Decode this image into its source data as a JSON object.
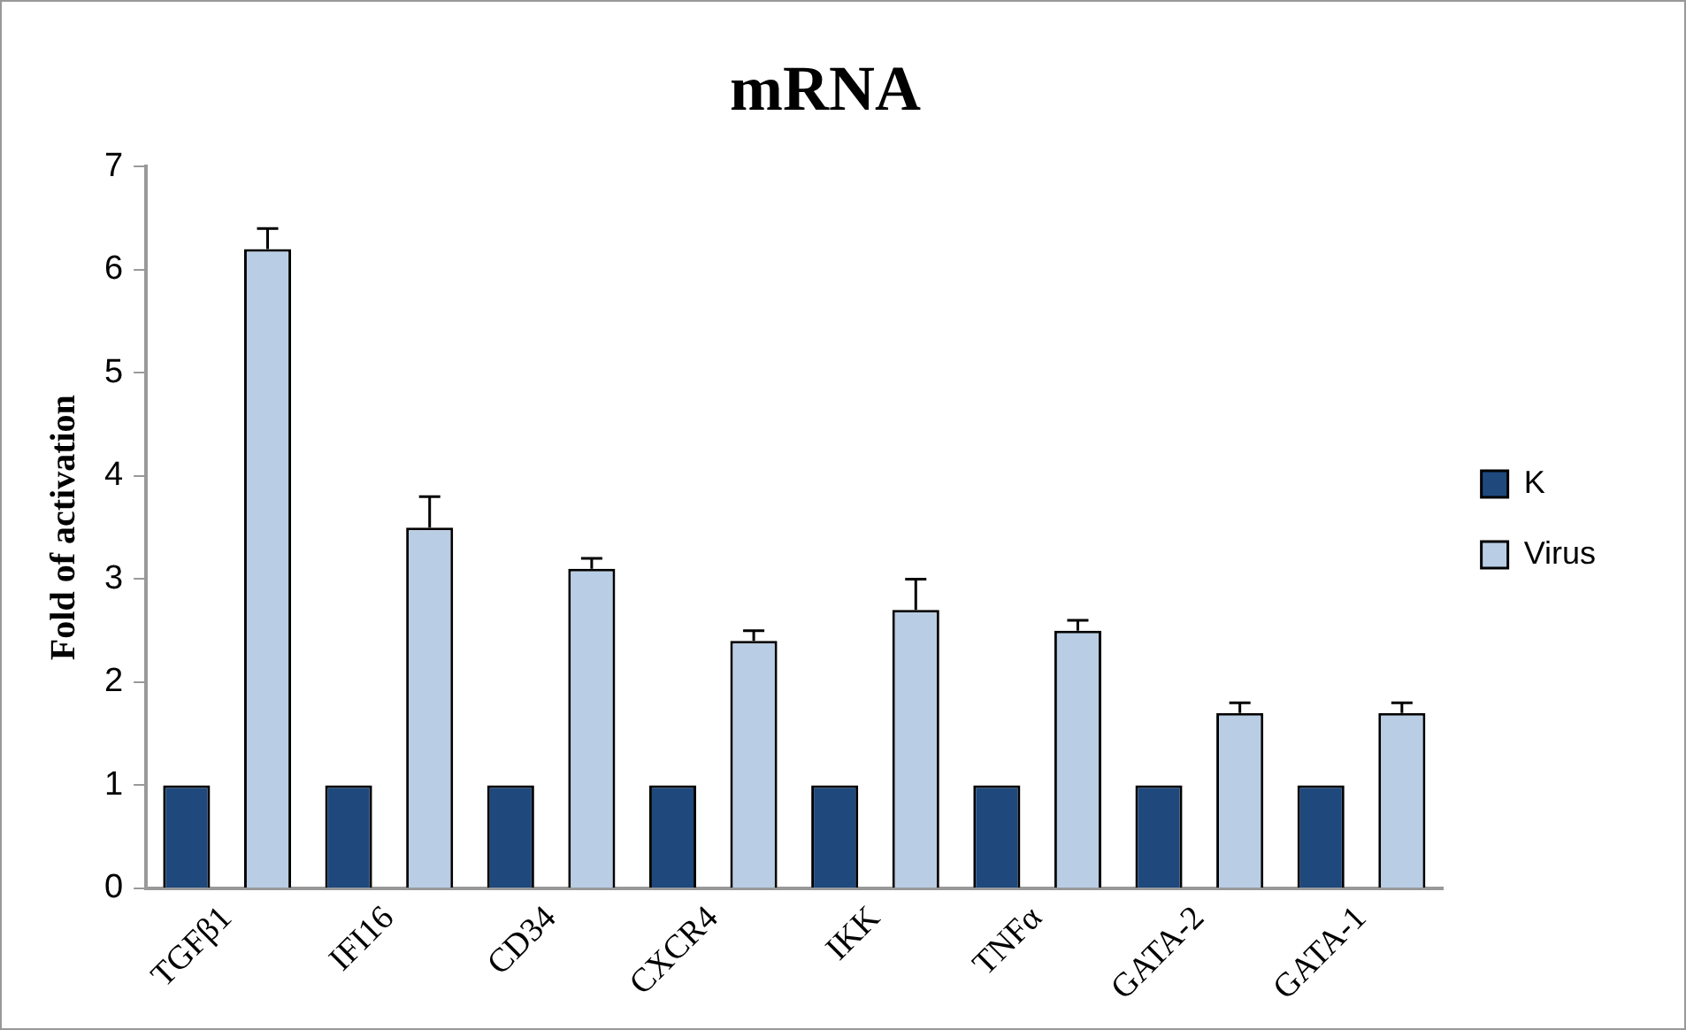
{
  "chart_data": {
    "type": "bar",
    "title": "mRNA",
    "ylabel": "Fold of activation",
    "categories": [
      "TGFβ1",
      "IFI16",
      "CD34",
      "CXCR4",
      "IKK",
      "TNFα",
      "GATA-2",
      "GATA-1"
    ],
    "series": [
      {
        "name": "K",
        "color": "#1f497d",
        "values": [
          1,
          1,
          1,
          1,
          1,
          1,
          1,
          1
        ]
      },
      {
        "name": "Virus",
        "color": "#b9cde5",
        "values": [
          6.2,
          3.5,
          3.1,
          2.4,
          2.7,
          2.5,
          1.7,
          1.7
        ],
        "errors": [
          [
            6.2,
            6.4
          ],
          [
            3.5,
            3.8
          ],
          [
            3.1,
            3.2
          ],
          [
            2.4,
            2.5
          ],
          [
            2.7,
            3.0
          ],
          [
            2.5,
            2.6
          ],
          [
            1.7,
            1.8
          ],
          [
            1.7,
            1.8
          ]
        ]
      }
    ],
    "ylim": [
      0,
      7
    ],
    "yticks": [
      0,
      1,
      2,
      3,
      4,
      5,
      6,
      7
    ],
    "grid": false,
    "legend": "right"
  }
}
